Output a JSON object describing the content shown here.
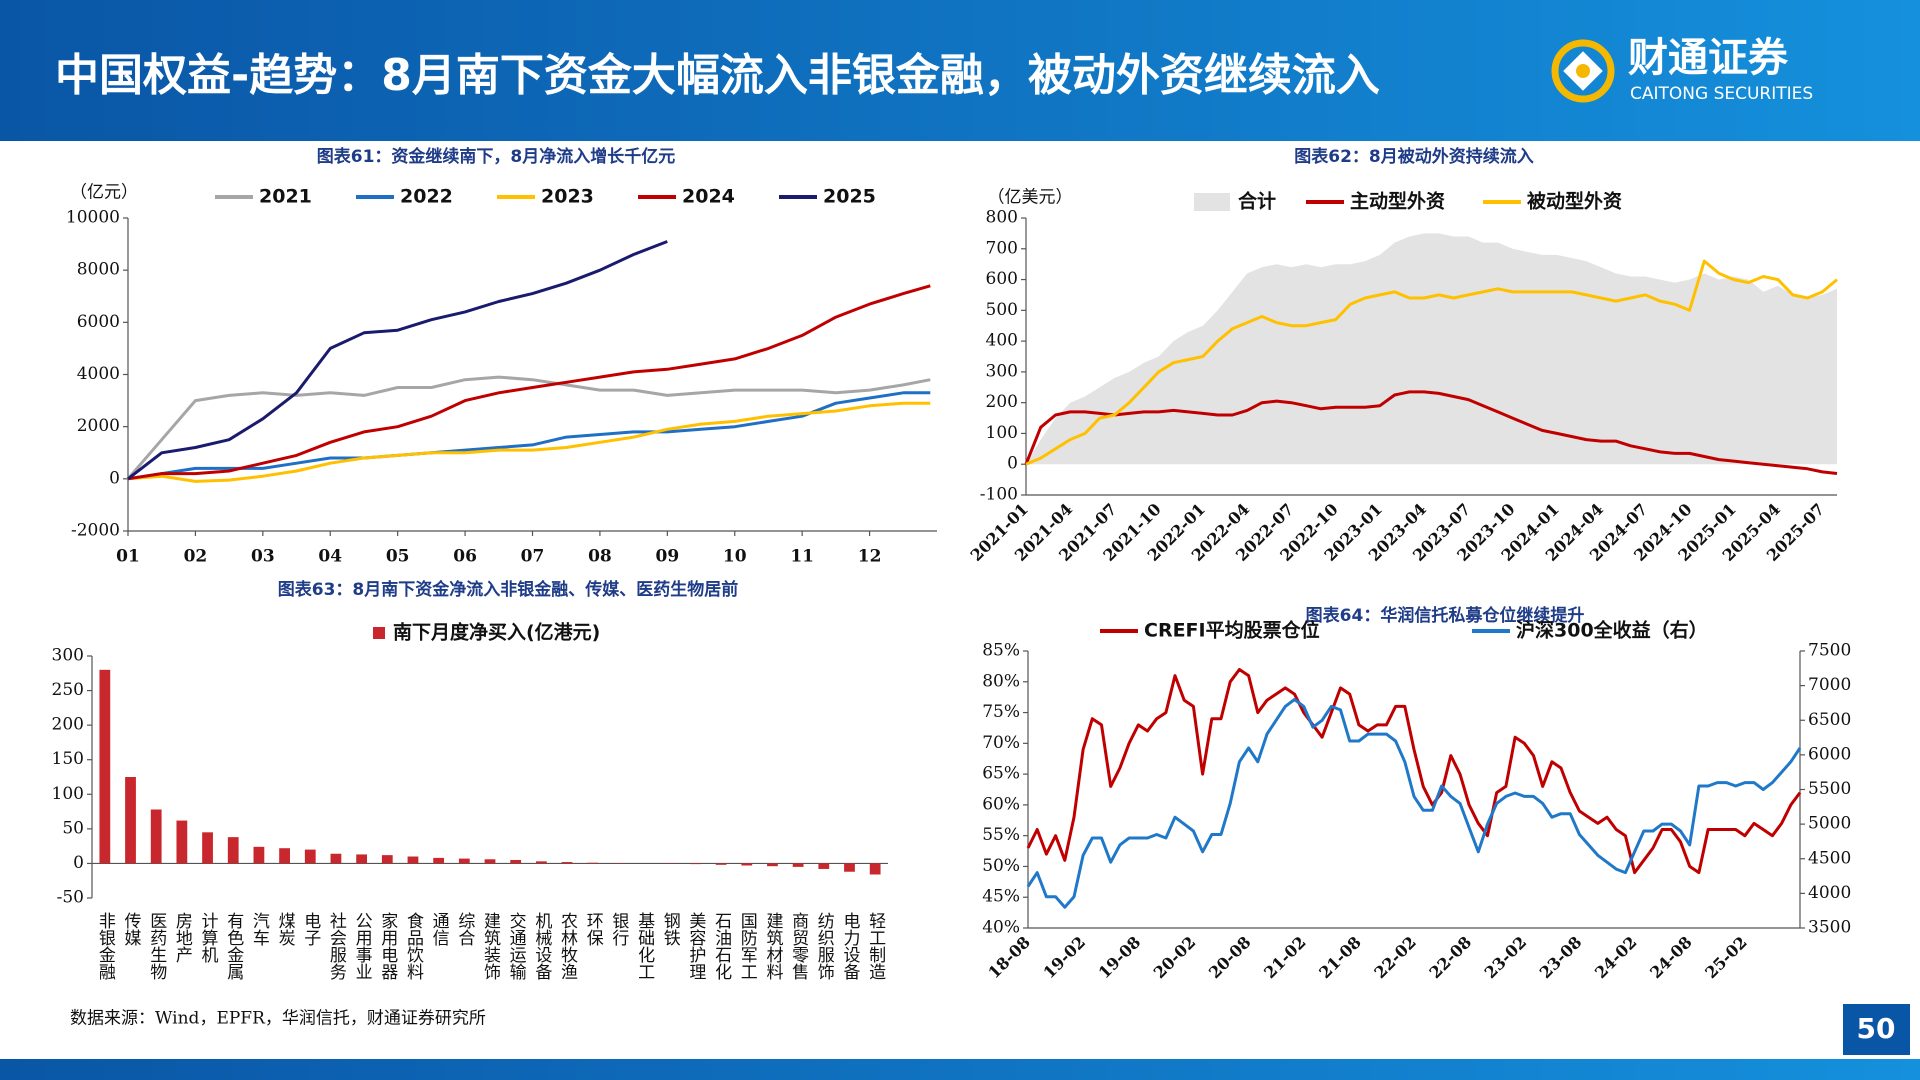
{
  "header": {
    "title": "中国权益-趋势：8月南下资金大幅流入非银金融，被动外资继续流入",
    "logo_cn": "财通证券",
    "logo_en": "CAITONG SECURITIES"
  },
  "chart_data": [
    {
      "type": "line",
      "title": "图表61：资金继续南下，8月净流入增长千亿元",
      "y_label": "（亿元）",
      "x": [
        1,
        1.5,
        2,
        2.5,
        3,
        3.5,
        4,
        4.5,
        5,
        5.5,
        6,
        6.5,
        7,
        7.5,
        8,
        8.5,
        9,
        9.5,
        10,
        10.5,
        11,
        11.5,
        12,
        12.5,
        12.9
      ],
      "xlim": [
        1,
        13
      ],
      "xticks": [
        {
          "value": 1,
          "label": "01"
        },
        {
          "value": 2,
          "label": "02"
        },
        {
          "value": 3,
          "label": "03"
        },
        {
          "value": 4,
          "label": "04"
        },
        {
          "value": 5,
          "label": "05"
        },
        {
          "value": 6,
          "label": "06"
        },
        {
          "value": 7,
          "label": "07"
        },
        {
          "value": 8,
          "label": "08"
        },
        {
          "value": 9,
          "label": "09"
        },
        {
          "value": 10,
          "label": "10"
        },
        {
          "value": 11,
          "label": "11"
        },
        {
          "value": 12,
          "label": "12"
        }
      ],
      "ylim": [
        -2000,
        10000
      ],
      "yticks": [
        -2000,
        0,
        2000,
        4000,
        6000,
        8000,
        10000
      ],
      "series": [
        {
          "name": "2021",
          "color": "#a6a6a6",
          "values": [
            0,
            1500,
            3000,
            3200,
            3300,
            3200,
            3300,
            3200,
            3500,
            3500,
            3800,
            3900,
            3800,
            3600,
            3400,
            3400,
            3200,
            3300,
            3400,
            3400,
            3400,
            3300,
            3400,
            3600,
            3800
          ]
        },
        {
          "name": "2022",
          "color": "#1f6fc5",
          "values": [
            0,
            200,
            400,
            400,
            400,
            600,
            800,
            800,
            900,
            1000,
            1100,
            1200,
            1300,
            1600,
            1700,
            1800,
            1800,
            1900,
            2000,
            2200,
            2400,
            2900,
            3100,
            3300,
            3300
          ]
        },
        {
          "name": "2023",
          "color": "#ffc000",
          "values": [
            0,
            100,
            -100,
            -50,
            100,
            300,
            600,
            800,
            900,
            1000,
            1000,
            1100,
            1100,
            1200,
            1400,
            1600,
            1900,
            2100,
            2200,
            2400,
            2500,
            2600,
            2800,
            2900,
            2900
          ]
        },
        {
          "name": "2024",
          "color": "#c00000",
          "values": [
            0,
            200,
            200,
            300,
            600,
            900,
            1400,
            1800,
            2000,
            2400,
            3000,
            3300,
            3500,
            3700,
            3900,
            4100,
            4200,
            4400,
            4600,
            5000,
            5500,
            6200,
            6700,
            7100,
            7400
          ]
        },
        {
          "name": "2025",
          "color": "#1a1a6e",
          "values": [
            0,
            1000,
            1200,
            1500,
            2300,
            3300,
            5000,
            5600,
            5700,
            6100,
            6400,
            6800,
            7100,
            7500,
            8000,
            8600,
            9100,
            null,
            null,
            null,
            null,
            null,
            null,
            null,
            null
          ]
        }
      ]
    },
    {
      "type": "line",
      "title": "图表62：8月被动外资持续流入",
      "y_label": "（亿美元）",
      "categories": [
        "2021-01",
        null,
        null,
        "2021-04",
        null,
        null,
        "2021-07",
        null,
        null,
        "2021-10",
        null,
        null,
        "2022-01",
        null,
        null,
        "2022-04",
        null,
        null,
        "2022-07",
        null,
        null,
        "2022-10",
        null,
        null,
        "2023-01",
        null,
        null,
        "2023-04",
        null,
        null,
        "2023-07",
        null,
        null,
        "2023-10",
        null,
        null,
        "2024-01",
        null,
        null,
        "2024-04",
        null,
        null,
        "2024-07",
        null,
        null,
        "2024-10",
        null,
        null,
        "2025-01",
        null,
        null,
        "2025-04",
        null,
        null,
        "2025-07",
        null
      ],
      "ylim": [
        -100,
        800
      ],
      "yticks": [
        -100,
        0,
        100,
        200,
        300,
        400,
        500,
        600,
        700,
        800
      ],
      "series": [
        {
          "name": "合计",
          "style": "area",
          "color": "#e3e3e3",
          "values": [
            0,
            80,
            150,
            200,
            220,
            250,
            280,
            300,
            330,
            350,
            400,
            430,
            450,
            500,
            560,
            620,
            640,
            650,
            640,
            650,
            640,
            650,
            650,
            660,
            680,
            720,
            740,
            750,
            750,
            740,
            740,
            720,
            720,
            700,
            690,
            680,
            680,
            670,
            660,
            640,
            620,
            610,
            610,
            600,
            590,
            600,
            620,
            600,
            610,
            600,
            560,
            580,
            550,
            540,
            550,
            570
          ]
        },
        {
          "name": "主动型外资",
          "color": "#c00000",
          "values": [
            0,
            120,
            160,
            170,
            170,
            165,
            160,
            165,
            170,
            170,
            175,
            170,
            165,
            160,
            160,
            175,
            200,
            205,
            200,
            190,
            180,
            185,
            185,
            185,
            190,
            225,
            235,
            235,
            230,
            220,
            210,
            190,
            170,
            150,
            130,
            110,
            100,
            90,
            80,
            75,
            75,
            60,
            50,
            40,
            35,
            35,
            25,
            15,
            10,
            5,
            0,
            -5,
            -10,
            -15,
            -25,
            -30
          ]
        },
        {
          "name": "被动型外资",
          "color": "#ffc000",
          "values": [
            0,
            20,
            50,
            80,
            100,
            150,
            160,
            200,
            250,
            300,
            330,
            340,
            350,
            400,
            440,
            460,
            480,
            460,
            450,
            450,
            460,
            470,
            520,
            540,
            550,
            560,
            540,
            540,
            550,
            540,
            550,
            560,
            570,
            560,
            560,
            560,
            560,
            560,
            550,
            540,
            530,
            540,
            550,
            530,
            520,
            500,
            660,
            620,
            600,
            590,
            610,
            600,
            550,
            540,
            560,
            600
          ]
        }
      ]
    },
    {
      "type": "bar",
      "title": "图表63：8月南下资金净流入非银金融、传媒、医药生物居前",
      "categories": [
        "非银金融",
        "传媒",
        "医药生物",
        "房地产",
        "计算机",
        "有色金属",
        "汽车",
        "煤炭",
        "电子",
        "社会服务",
        "公用事业",
        "家用电器",
        "食品饮料",
        "通信",
        "综合",
        "建筑装饰",
        "交通运输",
        "机械设备",
        "农林牧渔",
        "环保",
        "银行",
        "基础化工",
        "钢铁",
        "美容护理",
        "石油石化",
        "国防军工",
        "建筑材料",
        "商贸零售",
        "纺织服饰",
        "电力设备",
        "轻工制造"
      ],
      "ylim": [
        -50,
        300
      ],
      "yticks": [
        -50,
        0,
        50,
        100,
        150,
        200,
        250,
        300
      ],
      "series": [
        {
          "name": "南下月度净买入(亿港元)",
          "color": "#c8282d",
          "values": [
            280,
            125,
            78,
            62,
            45,
            38,
            24,
            22,
            20,
            14,
            13,
            12,
            10,
            8,
            7,
            6,
            5,
            3,
            2,
            1,
            0.5,
            0,
            -0.5,
            -1,
            -2,
            -3,
            -4,
            -5,
            -8,
            -12,
            -16
          ]
        }
      ]
    },
    {
      "type": "line",
      "title": "图表64：华润信托私募仓位继续提升",
      "categories": [
        "18-08",
        null,
        null,
        null,
        null,
        null,
        "19-02",
        null,
        null,
        null,
        null,
        null,
        "19-08",
        null,
        null,
        null,
        null,
        null,
        "20-02",
        null,
        null,
        null,
        null,
        null,
        "20-08",
        null,
        null,
        null,
        null,
        null,
        "21-02",
        null,
        null,
        null,
        null,
        null,
        "21-08",
        null,
        null,
        null,
        null,
        null,
        "22-02",
        null,
        null,
        null,
        null,
        null,
        "22-08",
        null,
        null,
        null,
        null,
        null,
        "23-02",
        null,
        null,
        null,
        null,
        null,
        "23-08",
        null,
        null,
        null,
        null,
        null,
        "24-02",
        null,
        null,
        null,
        null,
        null,
        "24-08",
        null,
        null,
        null,
        null,
        null,
        "25-02",
        null,
        null,
        null,
        null,
        null,
        null
      ],
      "ylim": [
        40,
        85
      ],
      "yticks": [
        {
          "value": 40,
          "label": "40%"
        },
        {
          "value": 45,
          "label": "45%"
        },
        {
          "value": 50,
          "label": "50%"
        },
        {
          "value": 55,
          "label": "55%"
        },
        {
          "value": 60,
          "label": "60%"
        },
        {
          "value": 65,
          "label": "65%"
        },
        {
          "value": 70,
          "label": "70%"
        },
        {
          "value": 75,
          "label": "75%"
        },
        {
          "value": 80,
          "label": "80%"
        },
        {
          "value": 85,
          "label": "85%"
        }
      ],
      "y2lim": [
        3500,
        7500
      ],
      "y2ticks": [
        3500,
        4000,
        4500,
        5000,
        5500,
        6000,
        6500,
        7000,
        7500
      ],
      "series": [
        {
          "name": "CREFI平均股票仓位",
          "color": "#c00000",
          "values": [
            53,
            56,
            52,
            55,
            51,
            58,
            69,
            74,
            73,
            63,
            66,
            70,
            73,
            72,
            74,
            75,
            81,
            77,
            76,
            65,
            74,
            74,
            80,
            82,
            81,
            75,
            77,
            78,
            79,
            78,
            75,
            73,
            71,
            75,
            79,
            78,
            73,
            72,
            73,
            73,
            76,
            76,
            69,
            63,
            60,
            62,
            68,
            65,
            60,
            57,
            55,
            62,
            63,
            71,
            70,
            68,
            63,
            67,
            66,
            62,
            59,
            58,
            57,
            58,
            56,
            55,
            49,
            51,
            53,
            56,
            56,
            54,
            50,
            49,
            56,
            56,
            56,
            56,
            55,
            57,
            56,
            55,
            57,
            60,
            62
          ]
        },
        {
          "name": "沪深300全收益（右）",
          "axis": "y2",
          "color": "#1f78c8",
          "values": [
            4100,
            4300,
            3950,
            3950,
            3800,
            3950,
            4550,
            4800,
            4800,
            4450,
            4700,
            4800,
            4800,
            4800,
            4850,
            4800,
            5100,
            5000,
            4900,
            4600,
            4850,
            4850,
            5300,
            5900,
            6100,
            5900,
            6300,
            6500,
            6700,
            6800,
            6700,
            6400,
            6500,
            6700,
            6650,
            6200,
            6200,
            6300,
            6300,
            6300,
            6200,
            5900,
            5400,
            5200,
            5200,
            5550,
            5400,
            5300,
            4950,
            4600,
            5000,
            5300,
            5400,
            5450,
            5400,
            5400,
            5300,
            5100,
            5150,
            5150,
            4850,
            4700,
            4550,
            4450,
            4350,
            4300,
            4600,
            4900,
            4900,
            5000,
            5000,
            4900,
            4700,
            5550,
            5550,
            5600,
            5600,
            5550,
            5600,
            5600,
            5500,
            5600,
            5750,
            5900,
            6100
          ]
        }
      ]
    }
  ],
  "footer": {
    "source": "数据来源：Wind，EPFR，华润信托，财通证券研究所",
    "page": "50"
  }
}
